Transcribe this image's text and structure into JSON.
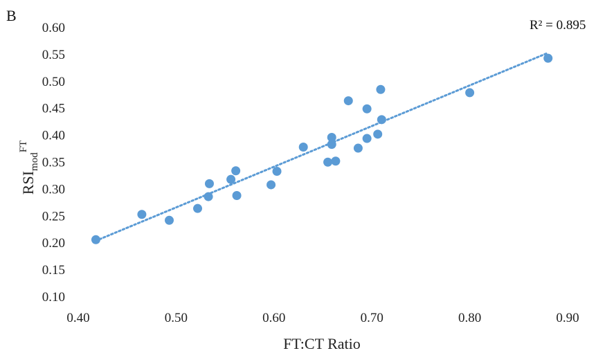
{
  "panel_label": "B",
  "chart_data": {
    "type": "scatter",
    "xlabel": "FT:CT Ratio",
    "ylabel": {
      "base": "RSI",
      "sub": "mod",
      "sup": "FT"
    },
    "xlim": [
      0.4,
      0.9
    ],
    "ylim": [
      0.1,
      0.6
    ],
    "x_ticks": [
      "0.40",
      "0.50",
      "0.60",
      "0.70",
      "0.80",
      "0.90"
    ],
    "y_ticks": [
      "0.10",
      "0.15",
      "0.20",
      "0.25",
      "0.30",
      "0.35",
      "0.40",
      "0.45",
      "0.50",
      "0.55",
      "0.60"
    ],
    "grid": false,
    "point_color": "#5b9bd5",
    "trendline": {
      "style": "dotted",
      "color": "#5b9bd5",
      "from": [
        0.418,
        0.203
      ],
      "to": [
        0.88,
        0.552
      ]
    },
    "annotation": "R² = 0.895",
    "points": [
      {
        "x": 0.418,
        "y": 0.205
      },
      {
        "x": 0.465,
        "y": 0.252
      },
      {
        "x": 0.493,
        "y": 0.241
      },
      {
        "x": 0.522,
        "y": 0.263
      },
      {
        "x": 0.533,
        "y": 0.285
      },
      {
        "x": 0.534,
        "y": 0.309
      },
      {
        "x": 0.556,
        "y": 0.317
      },
      {
        "x": 0.561,
        "y": 0.333
      },
      {
        "x": 0.562,
        "y": 0.287
      },
      {
        "x": 0.597,
        "y": 0.307
      },
      {
        "x": 0.603,
        "y": 0.332
      },
      {
        "x": 0.63,
        "y": 0.377
      },
      {
        "x": 0.655,
        "y": 0.349
      },
      {
        "x": 0.659,
        "y": 0.395
      },
      {
        "x": 0.659,
        "y": 0.382
      },
      {
        "x": 0.663,
        "y": 0.351
      },
      {
        "x": 0.676,
        "y": 0.463
      },
      {
        "x": 0.686,
        "y": 0.375
      },
      {
        "x": 0.695,
        "y": 0.393
      },
      {
        "x": 0.695,
        "y": 0.448
      },
      {
        "x": 0.706,
        "y": 0.401
      },
      {
        "x": 0.709,
        "y": 0.484
      },
      {
        "x": 0.71,
        "y": 0.428
      },
      {
        "x": 0.8,
        "y": 0.478
      },
      {
        "x": 0.88,
        "y": 0.542
      }
    ]
  }
}
